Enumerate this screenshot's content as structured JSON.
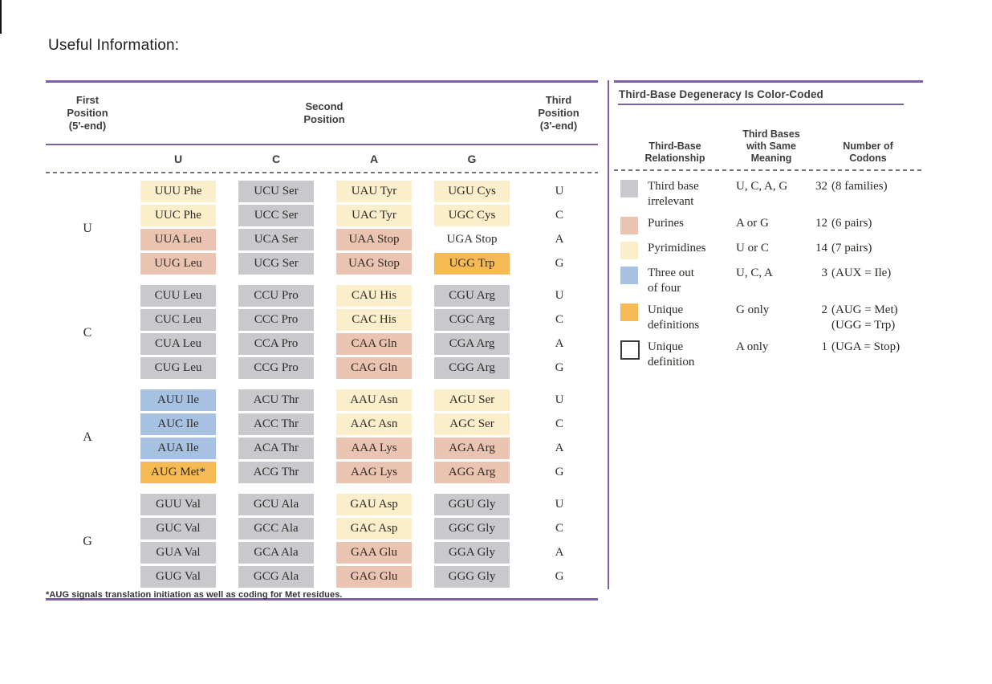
{
  "page_title": "Useful Information:",
  "colors": {
    "purple": "#7d5fa6",
    "gray": "#c9c9cd",
    "purine": "#eac3b1",
    "pyrimidine": "#fbeecb",
    "blue": "#a6c1e1",
    "orange": "#f6ba55",
    "white": "#ffffff"
  },
  "codon_table": {
    "first_position_header": "First\nPosition\n(5'-end)",
    "second_position_header": "Second\nPosition",
    "third_position_header": "Third\nPosition\n(3'-end)",
    "second_bases": [
      "U",
      "C",
      "A",
      "G"
    ],
    "blocks": [
      {
        "first_base": "U",
        "rows": [
          {
            "third": "U",
            "cells": [
              {
                "text": "UUU Phe",
                "color": "pyrimidine"
              },
              {
                "text": "UCU Ser",
                "color": "gray"
              },
              {
                "text": "UAU Tyr",
                "color": "pyrimidine"
              },
              {
                "text": "UGU Cys",
                "color": "pyrimidine"
              }
            ]
          },
          {
            "third": "C",
            "cells": [
              {
                "text": "UUC Phe",
                "color": "pyrimidine"
              },
              {
                "text": "UCC Ser",
                "color": "gray"
              },
              {
                "text": "UAC Tyr",
                "color": "pyrimidine"
              },
              {
                "text": "UGC Cys",
                "color": "pyrimidine"
              }
            ]
          },
          {
            "third": "A",
            "cells": [
              {
                "text": "UUA Leu",
                "color": "purine"
              },
              {
                "text": "UCA Ser",
                "color": "gray"
              },
              {
                "text": "UAA Stop",
                "color": "purine"
              },
              {
                "text": "UGA Stop",
                "color": "white"
              }
            ]
          },
          {
            "third": "G",
            "cells": [
              {
                "text": "UUG Leu",
                "color": "purine"
              },
              {
                "text": "UCG Ser",
                "color": "gray"
              },
              {
                "text": "UAG Stop",
                "color": "purine"
              },
              {
                "text": "UGG Trp",
                "color": "orange"
              }
            ]
          }
        ]
      },
      {
        "first_base": "C",
        "rows": [
          {
            "third": "U",
            "cells": [
              {
                "text": "CUU Leu",
                "color": "gray"
              },
              {
                "text": "CCU Pro",
                "color": "gray"
              },
              {
                "text": "CAU His",
                "color": "pyrimidine"
              },
              {
                "text": "CGU Arg",
                "color": "gray"
              }
            ]
          },
          {
            "third": "C",
            "cells": [
              {
                "text": "CUC Leu",
                "color": "gray"
              },
              {
                "text": "CCC Pro",
                "color": "gray"
              },
              {
                "text": "CAC His",
                "color": "pyrimidine"
              },
              {
                "text": "CGC Arg",
                "color": "gray"
              }
            ]
          },
          {
            "third": "A",
            "cells": [
              {
                "text": "CUA Leu",
                "color": "gray"
              },
              {
                "text": "CCA Pro",
                "color": "gray"
              },
              {
                "text": "CAA Gln",
                "color": "purine"
              },
              {
                "text": "CGA Arg",
                "color": "gray"
              }
            ]
          },
          {
            "third": "G",
            "cells": [
              {
                "text": "CUG Leu",
                "color": "gray"
              },
              {
                "text": "CCG Pro",
                "color": "gray"
              },
              {
                "text": "CAG Gln",
                "color": "purine"
              },
              {
                "text": "CGG Arg",
                "color": "gray"
              }
            ]
          }
        ]
      },
      {
        "first_base": "A",
        "rows": [
          {
            "third": "U",
            "cells": [
              {
                "text": "AUU Ile",
                "color": "blue"
              },
              {
                "text": "ACU Thr",
                "color": "gray"
              },
              {
                "text": "AAU Asn",
                "color": "pyrimidine"
              },
              {
                "text": "AGU Ser",
                "color": "pyrimidine"
              }
            ]
          },
          {
            "third": "C",
            "cells": [
              {
                "text": "AUC Ile",
                "color": "blue"
              },
              {
                "text": "ACC Thr",
                "color": "gray"
              },
              {
                "text": "AAC Asn",
                "color": "pyrimidine"
              },
              {
                "text": "AGC Ser",
                "color": "pyrimidine"
              }
            ]
          },
          {
            "third": "A",
            "cells": [
              {
                "text": "AUA Ile",
                "color": "blue"
              },
              {
                "text": "ACA Thr",
                "color": "gray"
              },
              {
                "text": "AAA Lys",
                "color": "purine"
              },
              {
                "text": "AGA Arg",
                "color": "purine"
              }
            ]
          },
          {
            "third": "G",
            "cells": [
              {
                "text": "AUG Met*",
                "color": "orange"
              },
              {
                "text": "ACG Thr",
                "color": "gray"
              },
              {
                "text": "AAG Lys",
                "color": "purine"
              },
              {
                "text": "AGG Arg",
                "color": "purine"
              }
            ]
          }
        ]
      },
      {
        "first_base": "G",
        "rows": [
          {
            "third": "U",
            "cells": [
              {
                "text": "GUU Val",
                "color": "gray"
              },
              {
                "text": "GCU Ala",
                "color": "gray"
              },
              {
                "text": "GAU Asp",
                "color": "pyrimidine"
              },
              {
                "text": "GGU Gly",
                "color": "gray"
              }
            ]
          },
          {
            "third": "C",
            "cells": [
              {
                "text": "GUC Val",
                "color": "gray"
              },
              {
                "text": "GCC Ala",
                "color": "gray"
              },
              {
                "text": "GAC Asp",
                "color": "pyrimidine"
              },
              {
                "text": "GGC Gly",
                "color": "gray"
              }
            ]
          },
          {
            "third": "A",
            "cells": [
              {
                "text": "GUA Val",
                "color": "gray"
              },
              {
                "text": "GCA Ala",
                "color": "gray"
              },
              {
                "text": "GAA Glu",
                "color": "purine"
              },
              {
                "text": "GGA Gly",
                "color": "gray"
              }
            ]
          },
          {
            "third": "G",
            "cells": [
              {
                "text": "GUG Val",
                "color": "gray"
              },
              {
                "text": "GCG Ala",
                "color": "gray"
              },
              {
                "text": "GAG Glu",
                "color": "purine"
              },
              {
                "text": "GGG Gly",
                "color": "gray"
              }
            ]
          }
        ]
      }
    ],
    "footnote": "*AUG signals translation initiation as well as coding for Met residues."
  },
  "legend": {
    "title": "Third-Base Degeneracy Is Color-Coded",
    "column_headers": [
      "Third-Base\nRelationship",
      "Third Bases\nwith Same\nMeaning",
      "Number of\nCodons"
    ],
    "rows": [
      {
        "swatch": "gray",
        "relationship": "Third base\nirrelevant",
        "bases": "U, C, A, G",
        "num": "32",
        "detail": "(8 families)"
      },
      {
        "swatch": "purine",
        "relationship": "Purines",
        "bases": "A or G",
        "num": "12",
        "detail": "(6 pairs)"
      },
      {
        "swatch": "pyrimidine",
        "relationship": "Pyrimidines",
        "bases": "U or C",
        "num": "14",
        "detail": "(7 pairs)"
      },
      {
        "swatch": "blue",
        "relationship": "Three out\nof four",
        "bases": "U, C, A",
        "num": "3",
        "detail": "(AUX = Ile)"
      },
      {
        "swatch": "orange",
        "relationship": "Unique\ndefinitions",
        "bases": "G only",
        "num": "2",
        "detail": "(AUG = Met)\n(UGG = Trp)"
      },
      {
        "swatch": "white",
        "relationship": "Unique\ndefinition",
        "bases": "A only",
        "num": "1",
        "detail": "(UGA = Stop)"
      }
    ]
  }
}
